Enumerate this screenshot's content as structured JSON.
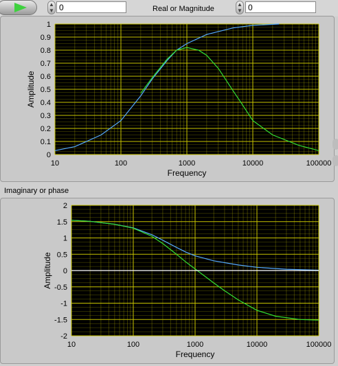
{
  "controls": {
    "real_value": "0",
    "imag_value": "0",
    "real_label": "Real or Magnitude",
    "imag_label": "Imaginary or phase"
  },
  "icons": {
    "run": "run-arrow-icon",
    "spinner": "spinner-icon"
  },
  "colors": {
    "plot_bg": "#000000",
    "grid": "#c8c400",
    "series_cyan": "#55aaff",
    "series_green": "#33e033",
    "zero_line": "#ffffff"
  },
  "chart_data": [
    {
      "type": "line",
      "title": "",
      "xlabel": "Frequency",
      "ylabel": "Amplitude",
      "x_scale": "log",
      "xlim": [
        10,
        100000
      ],
      "ylim": [
        0,
        1
      ],
      "x_ticks": [
        "10",
        "100",
        "1000",
        "10000",
        "100000"
      ],
      "y_ticks": [
        "0",
        "0.1",
        "0.2",
        "0.3",
        "0.4",
        "0.5",
        "0.6",
        "0.7",
        "0.8",
        "0.9",
        "1"
      ],
      "grid": true,
      "series": [
        {
          "color": "#55aaff",
          "x": [
            10,
            20,
            50,
            100,
            200,
            300,
            500,
            700,
            1000,
            2000,
            5000,
            10000,
            25000
          ],
          "y": [
            0.03,
            0.06,
            0.15,
            0.26,
            0.45,
            0.58,
            0.72,
            0.8,
            0.85,
            0.92,
            0.97,
            0.99,
            1.0
          ]
        },
        {
          "color": "#33e033",
          "x": [
            200,
            300,
            500,
            700,
            1000,
            1500,
            2000,
            3000,
            5000,
            7000,
            10000,
            20000,
            50000,
            100000
          ],
          "y": [
            0.47,
            0.59,
            0.73,
            0.8,
            0.82,
            0.8,
            0.76,
            0.66,
            0.49,
            0.38,
            0.26,
            0.15,
            0.07,
            0.03
          ]
        }
      ]
    },
    {
      "type": "line",
      "title": "",
      "xlabel": "Frequency",
      "ylabel": "Amplitude",
      "x_scale": "log",
      "xlim": [
        10,
        100000
      ],
      "ylim": [
        -2,
        2
      ],
      "x_ticks": [
        "10",
        "100",
        "1000",
        "10000",
        "100000"
      ],
      "y_ticks": [
        "-2",
        "-1.5",
        "-1",
        "-0.5",
        "0",
        "0.5",
        "1",
        "1.5",
        "2"
      ],
      "grid": true,
      "series": [
        {
          "color": "#55aaff",
          "x": [
            10,
            20,
            50,
            100,
            200,
            300,
            500,
            700,
            1000,
            2000,
            5000,
            10000,
            30000,
            100000
          ],
          "y": [
            1.54,
            1.51,
            1.42,
            1.31,
            1.1,
            0.93,
            0.71,
            0.57,
            0.45,
            0.3,
            0.17,
            0.1,
            0.04,
            0.01
          ]
        },
        {
          "color": "#33e033",
          "x": [
            10,
            20,
            50,
            100,
            200,
            300,
            500,
            700,
            1000,
            2000,
            3000,
            5000,
            10000,
            20000,
            50000,
            100000
          ],
          "y": [
            1.54,
            1.51,
            1.42,
            1.3,
            1.05,
            0.83,
            0.5,
            0.27,
            0.05,
            -0.38,
            -0.62,
            -0.9,
            -1.22,
            -1.4,
            -1.5,
            -1.52
          ]
        },
        {
          "color": "#ffffff",
          "x": [
            10,
            100000
          ],
          "y": [
            0,
            0
          ]
        }
      ]
    }
  ]
}
